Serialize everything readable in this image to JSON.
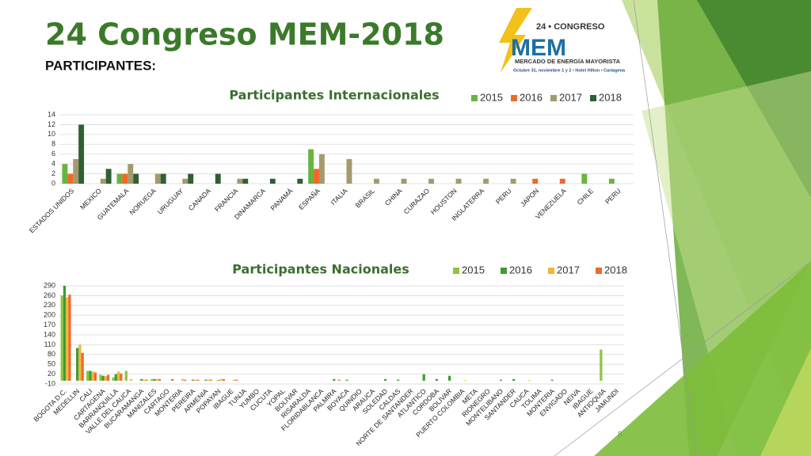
{
  "header": {
    "title": "24 Congreso MEM-2018",
    "subtitle": "PARTICIPANTES:"
  },
  "logo": {
    "edition": "24 • CONGRESO",
    "name": "MEM",
    "tagline": "MERCADO DE ENERGÍA MAYORISTA",
    "details": "Octubre 31, noviembre 1 y 2 • Hotel Hilton • Cartagena"
  },
  "page_number": "8",
  "chart_data": [
    {
      "type": "bar",
      "title": "Participantes Internacionales",
      "categories": [
        "ESTADOS UNIDOS",
        "MEXICO",
        "GUATEMALA",
        "NORUEGA",
        "URUGUAY",
        "CANADA",
        "FRANCIA",
        "DINAMARCA",
        "PANAMÁ",
        "ESPAÑA",
        "ITALIA",
        "BRASIL",
        "CHINA",
        "CURAZAO",
        "HOUSTON",
        "INGLATERRA",
        "PERU",
        "JAPON",
        "VENEZUELA",
        "CHILE",
        "PERU"
      ],
      "series": [
        {
          "name": "2015",
          "color": "#6ab43e",
          "values": [
            4,
            null,
            2,
            null,
            null,
            null,
            null,
            null,
            null,
            7,
            null,
            null,
            null,
            null,
            null,
            null,
            null,
            null,
            null,
            2,
            1
          ]
        },
        {
          "name": "2016",
          "color": "#f0692a",
          "values": [
            2,
            null,
            2,
            null,
            null,
            null,
            null,
            null,
            null,
            3,
            null,
            null,
            null,
            null,
            null,
            null,
            null,
            1,
            1,
            null,
            null
          ]
        },
        {
          "name": "2017",
          "color": "#a49a6c",
          "values": [
            5,
            1,
            4,
            2,
            1,
            null,
            1,
            null,
            null,
            6,
            5,
            1,
            1,
            1,
            1,
            1,
            1,
            null,
            null,
            null,
            null
          ]
        },
        {
          "name": "2018",
          "color": "#2f5f33",
          "values": [
            12,
            3,
            2,
            2,
            2,
            2,
            1,
            1,
            1,
            null,
            null,
            null,
            null,
            null,
            null,
            null,
            null,
            null,
            null,
            null,
            null
          ]
        }
      ],
      "ylim": [
        0,
        14
      ],
      "yticks": [
        0,
        2,
        4,
        6,
        8,
        10,
        12,
        14
      ],
      "grid": true,
      "legend": "top-right"
    },
    {
      "type": "bar",
      "title": "Participantes Nacionales",
      "categories": [
        "BOGOTA D.C.",
        "MEDELLIN",
        "CALI",
        "CARTAGENA",
        "BARRANQUILLA",
        "VALLE DEL CAUCA",
        "BUCARAMANGA",
        "MANIZALES",
        "CARTAGO",
        "MONTERIA",
        "PEREIRA",
        "ARMENIA",
        "POPAYAN",
        "IBAGUE",
        "TUNJA",
        "YUMBO",
        "CUCUTA",
        "YOPAL",
        "BOLIVAR",
        "RISARALDA",
        "FLORIDABLANCA",
        "PALMIRA",
        "BOYACA",
        "QUINDIO",
        "ARAUCA",
        "SOLEDAD",
        "CALDAS",
        "NORTE DE SANTANDER",
        "ATLANTICO",
        "CORDOBA",
        "BOLIVAR",
        "PUERTO COLOMBIA",
        "META",
        "RIONEGRO",
        "MONTELIBANO",
        "SANTANDER",
        "CAUCA",
        "TOLIMA",
        "MONTERIA",
        "ENVIGADO",
        "NEIVA",
        "IBAGUE",
        "ANTIOQUIA",
        "JAMUNDI"
      ],
      "series": [
        {
          "name": "2015",
          "color": "#8cc63e",
          "values": [
            260,
            null,
            30,
            18,
            10,
            30,
            null,
            5,
            null,
            null,
            null,
            null,
            null,
            null,
            null,
            null,
            null,
            null,
            null,
            null,
            null,
            null,
            null,
            null,
            null,
            null,
            null,
            null,
            null,
            null,
            null,
            null,
            null,
            null,
            null,
            null,
            null,
            null,
            null,
            null,
            null,
            null,
            95,
            null
          ]
        },
        {
          "name": "2016",
          "color": "#3e9b35",
          "values": [
            290,
            100,
            30,
            15,
            20,
            null,
            5,
            5,
            null,
            null,
            3,
            3,
            2,
            null,
            null,
            null,
            null,
            null,
            null,
            null,
            null,
            5,
            3,
            null,
            null,
            5,
            3,
            null,
            20,
            5,
            15,
            null,
            null,
            null,
            3,
            5,
            null,
            null,
            3,
            null,
            null,
            null,
            null,
            null
          ]
        },
        {
          "name": "2017",
          "color": "#f2b63a",
          "values": [
            255,
            110,
            28,
            14,
            28,
            5,
            3,
            5,
            null,
            5,
            3,
            3,
            5,
            3,
            null,
            null,
            null,
            null,
            null,
            null,
            null,
            null,
            null,
            null,
            null,
            null,
            null,
            null,
            null,
            null,
            null,
            2,
            null,
            null,
            null,
            null,
            2,
            null,
            null,
            null,
            null,
            null,
            null,
            null
          ]
        },
        {
          "name": "2018",
          "color": "#f0692a",
          "values": [
            263,
            85,
            25,
            18,
            22,
            null,
            3,
            5,
            5,
            3,
            3,
            3,
            5,
            3,
            null,
            null,
            null,
            null,
            null,
            null,
            null,
            3,
            null,
            null,
            null,
            null,
            null,
            null,
            null,
            null,
            null,
            null,
            null,
            null,
            null,
            null,
            null,
            null,
            null,
            null,
            null,
            null,
            null,
            null
          ]
        }
      ],
      "ylim": [
        -10,
        290
      ],
      "yticks": [
        -10,
        20,
        50,
        80,
        110,
        140,
        170,
        200,
        230,
        260,
        290
      ],
      "grid": true,
      "legend": "top-right"
    }
  ]
}
